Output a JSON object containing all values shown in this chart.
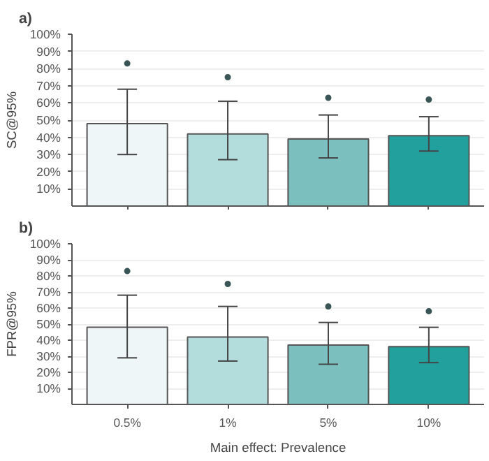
{
  "chart_data": [
    {
      "type": "bar",
      "title": "a)",
      "ylabel": "SC@95%",
      "categories": [
        null,
        null,
        null,
        null
      ],
      "tick_labels": "y",
      "series": [
        {
          "values": [
            48,
            42,
            39,
            41
          ],
          "colors": [
            "#eef6f7",
            "#b3dcdc",
            "#7bbfbf",
            "#22a09e"
          ],
          "errors": [
            [
              30,
              68
            ],
            [
              27,
              61
            ],
            [
              28,
              53
            ],
            [
              32,
              52
            ]
          ]
        },
        {
          "type": "scatter",
          "values": [
            83,
            75,
            63,
            62
          ],
          "color": "#3a5555",
          "marker": "circle"
        }
      ],
      "ylim": [
        0,
        100
      ],
      "yticks": [
        {
          "value": 10,
          "label": "10%"
        },
        {
          "value": 20,
          "label": "20%"
        },
        {
          "value": 30,
          "label": "30%"
        },
        {
          "value": 40,
          "label": "40%"
        },
        {
          "value": 50,
          "label": "50%"
        },
        {
          "value": 60,
          "label": "60%"
        },
        {
          "value": 70,
          "label": "70%"
        },
        {
          "value": 80,
          "label": "80%"
        },
        {
          "value": 90,
          "label": "90%"
        },
        {
          "value": 100,
          "label": "100%"
        }
      ],
      "grid": "y"
    },
    {
      "type": "bar",
      "title": "b)",
      "ylabel": "FPR@95%",
      "xlabel": "Main effect: Prevalence",
      "categories": [
        "0.5%",
        "1%",
        "5%",
        "10%"
      ],
      "series": [
        {
          "values": [
            48,
            42,
            37,
            36
          ],
          "colors": [
            "#eef6f7",
            "#b3dcdc",
            "#7bbfbf",
            "#22a09e"
          ],
          "errors": [
            [
              29,
              68
            ],
            [
              27,
              61
            ],
            [
              25,
              51
            ],
            [
              26,
              48
            ]
          ]
        },
        {
          "type": "scatter",
          "x": [
            "0.5%",
            "1%",
            "5%",
            "10%"
          ],
          "values": [
            83,
            75,
            61,
            58
          ],
          "color": "#3a5555",
          "marker": "circle"
        }
      ],
      "ylim": [
        0,
        100
      ],
      "yticks": [
        {
          "value": 10,
          "label": "10%"
        },
        {
          "value": 20,
          "label": "20%"
        },
        {
          "value": 30,
          "label": "30%"
        },
        {
          "value": 40,
          "label": "40%"
        },
        {
          "value": 50,
          "label": "50%"
        },
        {
          "value": 60,
          "label": "60%"
        },
        {
          "value": 70,
          "label": "70%"
        },
        {
          "value": 80,
          "label": "80%"
        },
        {
          "value": 90,
          "label": "90%"
        },
        {
          "value": 100,
          "label": "100%"
        }
      ],
      "grid": "y"
    }
  ]
}
